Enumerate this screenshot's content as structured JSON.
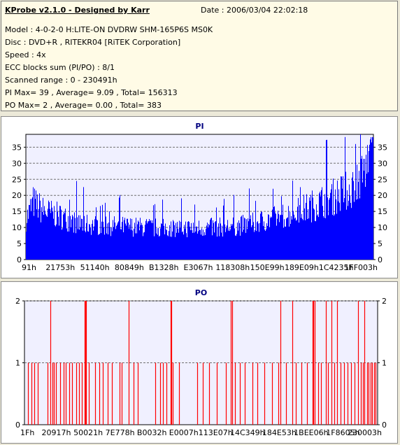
{
  "info": {
    "title": "KProbe v2.1.0 - Designed by Karr",
    "date": "Date : 2006/03/04 22:02:18",
    "model": "Model : 4-0-2-0 H:LITE-ON DVDRW SHM-165P6S MS0K",
    "disc": "Disc : DVD+R , RITEKR04 [RiTEK Corporation]",
    "speed": "Speed : 4x",
    "ecc": "ECC blocks sum (PI/PO) : 8/1",
    "range": "Scanned range : 0 - 230491h",
    "pi_summary": "PI Max= 39 , Average= 9.09 , Total= 156313",
    "po_summary": "PO Max= 2 , Average= 0.00 , Total= 383"
  },
  "colors": {
    "pi_bar": "#0000ff",
    "po_bar": "#ff0000",
    "plot_bg": "#f0f0ff",
    "grid": "#707070",
    "title": "#000080"
  },
  "chart_data": [
    {
      "type": "bar",
      "title": "PI",
      "ylim": [
        0,
        39
      ],
      "yticks": [
        0,
        5,
        10,
        15,
        20,
        25,
        30,
        35
      ],
      "xticks": [
        "91h",
        "21753h",
        "51140h",
        "80849h",
        "B1328h",
        "E3067h",
        "118308h",
        "150E99h",
        "189E09h",
        "1C4235h",
        "1FF003h"
      ],
      "grid": true,
      "profile": [
        [
          0,
          14
        ],
        [
          0.02,
          20
        ],
        [
          0.05,
          17
        ],
        [
          0.1,
          15
        ],
        [
          0.15,
          12.5
        ],
        [
          0.2,
          12
        ],
        [
          0.3,
          11.5
        ],
        [
          0.4,
          11
        ],
        [
          0.5,
          11
        ],
        [
          0.6,
          11.5
        ],
        [
          0.65,
          12.5
        ],
        [
          0.7,
          14
        ],
        [
          0.75,
          15.5
        ],
        [
          0.8,
          17.5
        ],
        [
          0.85,
          20
        ],
        [
          0.9,
          22.5
        ],
        [
          0.94,
          25
        ],
        [
          0.97,
          30
        ],
        [
          1,
          36
        ]
      ],
      "max": 39,
      "average": 9.09,
      "total": 156313
    },
    {
      "type": "bar",
      "title": "PO",
      "ylim": [
        0,
        2
      ],
      "yticks": [
        0,
        1,
        2
      ],
      "xticks": [
        "1Fh",
        "20917h",
        "50021h",
        "7E778h",
        "B0032h",
        "E0007h",
        "113E07h",
        "14C349h",
        "184E53h",
        "1BEE06h",
        "1F8605h",
        "230003h"
      ],
      "grid": true,
      "spikes_2": [
        0.073,
        0.17,
        0.172,
        0.174,
        0.296,
        0.413,
        0.415,
        0.585,
        0.588,
        0.724,
        0.759,
        0.815,
        0.818,
        0.821,
        0.854,
        0.87,
        0.886,
        0.945,
        0.962
      ],
      "spikes_1": [
        0.01,
        0.02,
        0.028,
        0.037,
        0.066,
        0.08,
        0.084,
        0.09,
        0.1,
        0.11,
        0.116,
        0.126,
        0.135,
        0.146,
        0.154,
        0.163,
        0.183,
        0.2,
        0.212,
        0.222,
        0.236,
        0.247,
        0.27,
        0.276,
        0.308,
        0.32,
        0.37,
        0.385,
        0.392,
        0.402,
        0.42,
        0.437,
        0.49,
        0.505,
        0.522,
        0.545,
        0.57,
        0.597,
        0.61,
        0.624,
        0.645,
        0.66,
        0.68,
        0.7,
        0.718,
        0.74,
        0.768,
        0.785,
        0.8,
        0.832,
        0.84,
        0.86,
        0.878,
        0.895,
        0.905,
        0.915,
        0.925,
        0.935,
        0.952,
        0.958,
        0.97,
        0.975,
        0.98,
        0.985,
        0.99,
        0.995
      ],
      "max": 2,
      "average": 0.0,
      "total": 383
    }
  ]
}
